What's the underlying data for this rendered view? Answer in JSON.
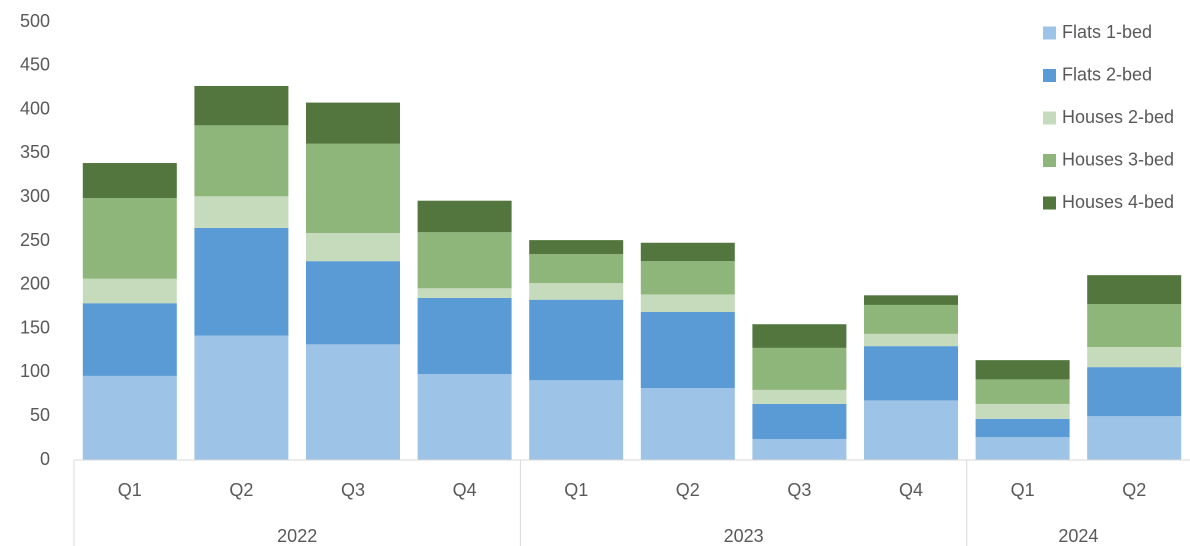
{
  "chart_data": {
    "type": "stacked-bar",
    "category_groups": [
      {
        "label": "2022",
        "categories": [
          "Q1",
          "Q2",
          "Q3",
          "Q4"
        ]
      },
      {
        "label": "2023",
        "categories": [
          "Q1",
          "Q2",
          "Q3",
          "Q4"
        ]
      },
      {
        "label": "2024",
        "categories": [
          "Q1",
          "Q2"
        ]
      }
    ],
    "series": [
      {
        "name": "Flats 1-bed",
        "color": "#9dc3e6",
        "values": [
          96,
          142,
          132,
          98,
          91,
          82,
          24,
          68,
          26,
          50
        ]
      },
      {
        "name": "Flats 2-bed",
        "color": "#5b9bd5",
        "values": [
          83,
          123,
          95,
          87,
          92,
          87,
          40,
          62,
          21,
          56
        ]
      },
      {
        "name": "Houses 2-bed",
        "color": "#c5dbbb",
        "values": [
          28,
          36,
          32,
          11,
          19,
          20,
          16,
          14,
          17,
          23
        ]
      },
      {
        "name": "Houses 3-bed",
        "color": "#8fb67a",
        "values": [
          92,
          81,
          102,
          64,
          33,
          38,
          48,
          33,
          28,
          49
        ]
      },
      {
        "name": "Houses 4-bed",
        "color": "#52763d",
        "values": [
          40,
          45,
          47,
          36,
          16,
          21,
          27,
          11,
          22,
          33
        ]
      }
    ],
    "ylim": [
      0,
      500
    ],
    "yticks": [
      0,
      50,
      100,
      150,
      200,
      250,
      300,
      350,
      400,
      450,
      500
    ],
    "grid": false,
    "legend": "right"
  }
}
